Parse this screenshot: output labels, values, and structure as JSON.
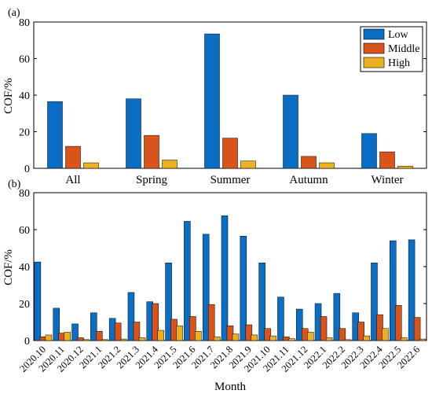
{
  "colors": {
    "Low": "#0a6ec4",
    "Middle": "#d9541a",
    "High": "#ecb11f",
    "axis": "#000000"
  },
  "chart_data": [
    {
      "panel": "(a)",
      "type": "bar",
      "ylabel": "COF/%",
      "xlabel": "",
      "ylim": [
        0,
        80
      ],
      "yticks": [
        0,
        20,
        40,
        60,
        80
      ],
      "categories": [
        "All",
        "Spring",
        "Summer",
        "Autumn",
        "Winter"
      ],
      "legend": {
        "placement": "top-right",
        "entries": [
          "Low",
          "Middle",
          "High"
        ]
      },
      "series": [
        {
          "name": "Low",
          "values": [
            36.5,
            38.0,
            73.5,
            40.0,
            19.0
          ]
        },
        {
          "name": "Middle",
          "values": [
            12.0,
            18.0,
            16.5,
            6.5,
            9.0
          ]
        },
        {
          "name": "High",
          "values": [
            3.0,
            4.5,
            4.0,
            3.0,
            1.2
          ]
        }
      ]
    },
    {
      "panel": "(b)",
      "type": "bar",
      "ylabel": "COF/%",
      "xlabel": "Month",
      "ylim": [
        0,
        80
      ],
      "yticks": [
        0,
        20,
        40,
        60,
        80
      ],
      "categories": [
        "2020.10",
        "2020.11",
        "2020.12",
        "2021.1",
        "2021.2",
        "2021.3",
        "2021.4",
        "2021.5",
        "2021.6",
        "2021.7",
        "2021.8",
        "2021.9",
        "2021.10",
        "2021.11",
        "2021.12",
        "2022.1",
        "2022.2",
        "2022.3",
        "2022.4",
        "2022.5",
        "2022.6"
      ],
      "series": [
        {
          "name": "Low",
          "values": [
            42.5,
            17.5,
            9.0,
            15.0,
            12.0,
            26.0,
            21.0,
            42.0,
            64.5,
            57.5,
            67.5,
            56.5,
            42.0,
            23.5,
            17.0,
            20.0,
            25.5,
            15.0,
            42.0,
            54.0,
            54.5
          ]
        },
        {
          "name": "Middle",
          "values": [
            2.0,
            4.0,
            1.5,
            5.0,
            9.5,
            10.0,
            20.0,
            11.5,
            13.0,
            19.5,
            8.0,
            8.5,
            6.5,
            2.0,
            6.5,
            13.0,
            6.5,
            10.0,
            14.0,
            19.0,
            12.5
          ]
        },
        {
          "name": "High",
          "values": [
            3.0,
            4.5,
            0.5,
            0.5,
            0.8,
            1.5,
            5.5,
            8.0,
            5.0,
            2.0,
            3.5,
            3.0,
            2.5,
            1.0,
            4.5,
            1.5,
            0.5,
            2.5,
            6.5,
            1.5,
            0.8
          ]
        }
      ]
    }
  ]
}
